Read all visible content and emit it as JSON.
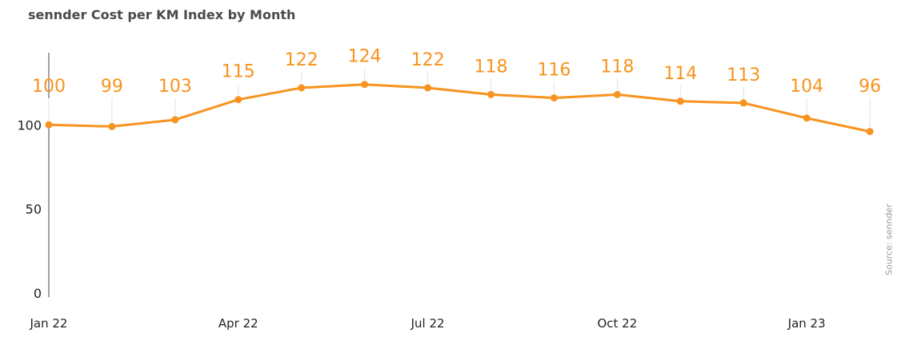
{
  "chart_data": {
    "type": "line",
    "title": "sennder Cost per KM Index by Month",
    "xlabel": "",
    "ylabel": "",
    "x": [
      "2022-01",
      "2022-02",
      "2022-03",
      "2022-04",
      "2022-05",
      "2022-06",
      "2022-07",
      "2022-08",
      "2022-09",
      "2022-10",
      "2022-11",
      "2022-12",
      "2023-01",
      "2023-02"
    ],
    "x_tick_labels": [
      "Jan 22",
      "Apr 22",
      "Jul 22",
      "Oct 22",
      "Jan 23"
    ],
    "x_tick_positions": [
      0,
      3,
      6,
      9,
      12
    ],
    "series": [
      {
        "values": [
          100,
          99,
          103,
          115,
          122,
          124,
          122,
          118,
          116,
          118,
          114,
          113,
          104,
          96
        ]
      }
    ],
    "y_ticks": [
      0,
      50,
      100
    ],
    "ylim": [
      0,
      145
    ],
    "grid": false,
    "data_labels": true,
    "line_color": "#f7931e",
    "label_color": "#f7931e",
    "axis_text_color": "#222222",
    "source": "Source: sennder"
  }
}
